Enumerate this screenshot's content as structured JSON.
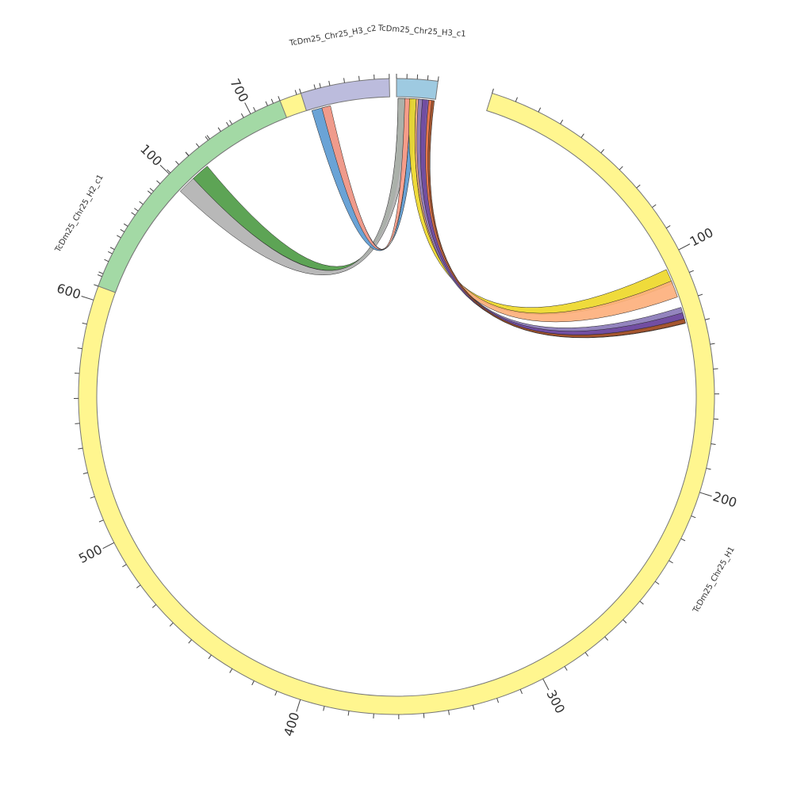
{
  "chart_data": {
    "type": "chord",
    "segments": [
      {
        "name": "TcDm25_Chr25_H1",
        "length": 730,
        "start_angle": 17.5,
        "end_angle": 346.2,
        "color": "#fff68f",
        "label_angle": 120,
        "major_ticks": [
          100,
          200,
          300,
          400,
          500,
          600,
          700
        ]
      },
      {
        "name": "TcDm25_Chr25_H2_c1",
        "length": 200,
        "start_angle": 290.3,
        "end_angle": 338.5,
        "color": "#a3d9a5",
        "label_angle": 300,
        "major_ticks": [
          100
        ]
      },
      {
        "name": "TcDm25_Chr25_H3_c2",
        "length": 60,
        "start_angle": 342.5,
        "end_angle": 358.7,
        "color": "#bcbcdd",
        "label_angle": 350
      },
      {
        "name": "TcDm25_Chr25_H3_c1",
        "length": 40,
        "start_angle": 0.0,
        "end_angle": 7.5,
        "color": "#9ecae1",
        "label_angle": 4
      }
    ],
    "links": [
      {
        "a": [
          317.0,
          320.6
        ],
        "b": [
          0.3,
          1.8
        ],
        "color": "#4f9c46"
      },
      {
        "a": [
          313.5,
          317.0
        ],
        "b": [
          0.3,
          2.8
        ],
        "color": "#b2b2b2"
      },
      {
        "a": [
          343.5,
          347.0
        ],
        "b": [
          2.8,
          4.0
        ],
        "color": "#5d9bd3"
      },
      {
        "a": [
          345.5,
          347.2
        ],
        "b": [
          1.6,
          2.8
        ],
        "color": "#fb9a86"
      },
      {
        "a": [
          2.5,
          3.8
        ],
        "b": [
          64.8,
          67.8
        ],
        "color": "#eed82a"
      },
      {
        "a": [
          3.8,
          5.1
        ],
        "b": [
          67.2,
          70.5
        ],
        "color": "#fdb07d"
      },
      {
        "a": [
          4.2,
          5.8
        ],
        "b": [
          72.6,
          74.8
        ],
        "color": "#8a79b9"
      },
      {
        "a": [
          5.0,
          6.8
        ],
        "b": [
          73.7,
          75.3
        ],
        "color": "#6f4aa0"
      },
      {
        "a": [
          6.2,
          7.1
        ],
        "b": [
          75.0,
          75.8
        ],
        "color": "#ef7a44"
      },
      {
        "a": [
          6.8,
          7.3
        ],
        "b": [
          74.9,
          75.7
        ],
        "color": "#a0522d"
      }
    ]
  }
}
